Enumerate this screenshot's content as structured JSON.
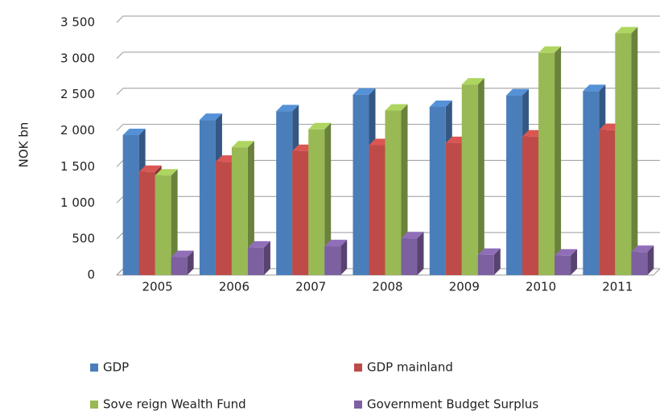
{
  "chart_data": {
    "type": "bar",
    "y_label": "NOK bn",
    "categories": [
      "2005",
      "2006",
      "2007",
      "2008",
      "2009",
      "2010",
      "2011"
    ],
    "series": [
      {
        "name": "GDP",
        "color": "#4a7ebb",
        "values": [
          1940,
          2150,
          2270,
          2500,
          2330,
          2490,
          2550
        ]
      },
      {
        "name": "GDP mainland",
        "color": "#be4b48",
        "values": [
          1430,
          1570,
          1720,
          1800,
          1830,
          1920,
          2010
        ]
      },
      {
        "name": "Sove reign Wealth Fund",
        "color": "#98b954",
        "values": [
          1380,
          1770,
          2020,
          2280,
          2640,
          3080,
          3350
        ]
      },
      {
        "name": "Government Budget Surplus",
        "color": "#7d60a0",
        "values": [
          250,
          380,
          400,
          510,
          280,
          270,
          320
        ]
      }
    ],
    "ylim": [
      0,
      3500
    ],
    "yticks": [
      0,
      500,
      {
        "value": 1000,
        "label": "1 000"
      },
      {
        "value": 1500,
        "label": "1 500"
      },
      {
        "value": 2000,
        "label": "2 000"
      },
      {
        "value": 2500,
        "label": "2 500"
      },
      {
        "value": 3000,
        "label": "3 000"
      },
      {
        "value": 3500,
        "label": "3 500"
      }
    ],
    "grid": true
  }
}
